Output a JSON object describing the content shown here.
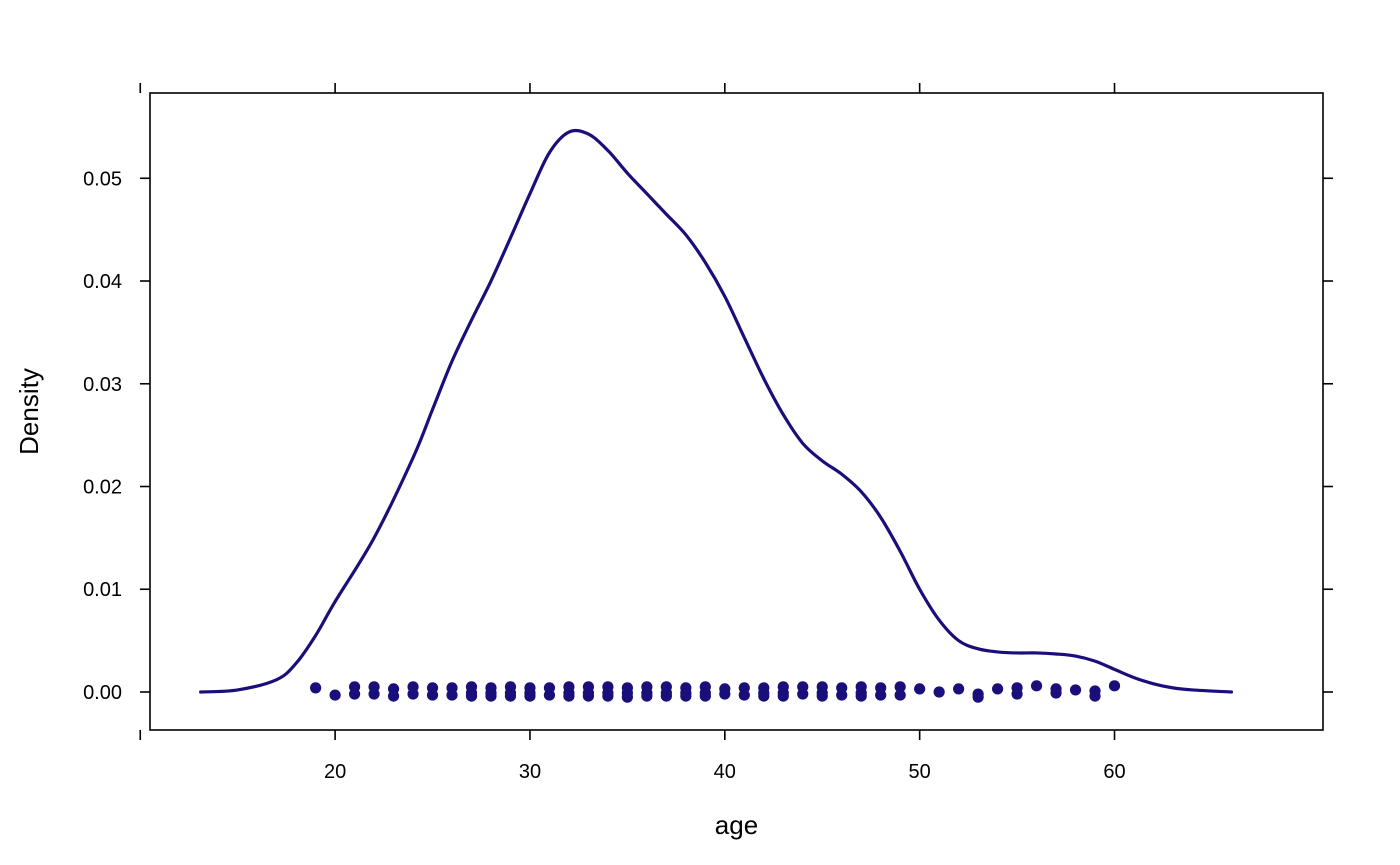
{
  "chart_data": {
    "type": "line",
    "title": "",
    "xlabel": "age",
    "ylabel": "Density",
    "xlim": [
      10.5,
      70.7
    ],
    "ylim": [
      -0.0037,
      0.0583
    ],
    "x_ticks": [
      20,
      30,
      40,
      50,
      60
    ],
    "x_tick_labels": [
      "20",
      "30",
      "40",
      "50",
      "60"
    ],
    "y_ticks": [
      0.0,
      0.01,
      0.02,
      0.03,
      0.04,
      0.05
    ],
    "y_tick_labels": [
      "0.00",
      "0.01",
      "0.02",
      "0.03",
      "0.04",
      "0.05"
    ],
    "grid": false,
    "color": "#1a0f7a",
    "series": [
      {
        "kind": "density",
        "x": [
          13.1,
          15,
          17,
          18,
          19,
          20,
          22,
          24,
          25,
          26,
          27,
          28,
          29,
          30,
          31,
          32,
          33,
          34,
          35,
          36,
          37,
          38,
          39,
          40,
          41,
          42,
          43,
          44,
          45,
          46,
          47,
          48,
          49,
          50,
          51,
          52,
          53,
          54,
          55,
          56,
          57,
          58,
          59,
          60,
          61,
          62,
          63,
          64,
          66
        ],
        "y": [
          0.0,
          0.0002,
          0.0012,
          0.0028,
          0.0055,
          0.0088,
          0.015,
          0.0228,
          0.0275,
          0.0322,
          0.0362,
          0.04,
          0.0442,
          0.0485,
          0.0525,
          0.0545,
          0.0543,
          0.0527,
          0.0505,
          0.0485,
          0.0465,
          0.0445,
          0.0418,
          0.0385,
          0.0345,
          0.0305,
          0.027,
          0.0242,
          0.0225,
          0.0212,
          0.0195,
          0.017,
          0.0137,
          0.01,
          0.007,
          0.005,
          0.0042,
          0.0039,
          0.0038,
          0.0038,
          0.0037,
          0.0035,
          0.003,
          0.0022,
          0.0014,
          0.0008,
          0.0004,
          0.0002,
          0.0
        ]
      },
      {
        "kind": "rug",
        "x": [
          19,
          20,
          21,
          21,
          22,
          22,
          23,
          23,
          24,
          24,
          25,
          25,
          26,
          26,
          27,
          27,
          27,
          28,
          28,
          28,
          29,
          29,
          29,
          30,
          30,
          30,
          31,
          31,
          32,
          32,
          32,
          33,
          33,
          33,
          34,
          34,
          34,
          35,
          35,
          35,
          36,
          36,
          36,
          37,
          37,
          37,
          38,
          38,
          38,
          39,
          39,
          39,
          40,
          40,
          41,
          41,
          42,
          42,
          42,
          43,
          43,
          43,
          44,
          44,
          45,
          45,
          45,
          46,
          46,
          47,
          47,
          47,
          48,
          48,
          49,
          49,
          50,
          51,
          52,
          53,
          53,
          54,
          55,
          55,
          56,
          57,
          57,
          58,
          59,
          59,
          60
        ],
        "y": [
          0.0004,
          -0.0003,
          0.0005,
          -0.0002,
          0.0005,
          -0.0002,
          0.0003,
          -0.0004,
          0.0005,
          -0.0002,
          0.0004,
          -0.0003,
          0.0004,
          -0.0003,
          0.0005,
          -0.0001,
          -0.0004,
          0.0004,
          -0.0001,
          -0.0004,
          0.0005,
          -0.0001,
          -0.0004,
          0.0004,
          -0.0001,
          -0.0004,
          0.0004,
          -0.0003,
          0.0005,
          -0.0001,
          -0.0004,
          0.0005,
          -0.0001,
          -0.0004,
          0.0005,
          -0.0001,
          -0.0004,
          0.0004,
          -0.0001,
          -0.0005,
          0.0005,
          -0.0001,
          -0.0004,
          0.0005,
          -0.0001,
          -0.0004,
          0.0004,
          -0.0001,
          -0.0004,
          0.0005,
          -0.0001,
          -0.0004,
          0.0003,
          -0.0002,
          0.0004,
          -0.0003,
          0.0004,
          -0.0001,
          -0.0004,
          0.0005,
          -0.0001,
          -0.0004,
          0.0005,
          -0.0002,
          0.0005,
          -0.0001,
          -0.0004,
          0.0004,
          -0.0003,
          0.0005,
          -0.0001,
          -0.0004,
          0.0004,
          -0.0003,
          0.0005,
          -0.0003,
          0.0003,
          0.0,
          0.0003,
          -0.0002,
          -0.0005,
          0.0003,
          0.0004,
          -0.0002,
          0.0006,
          0.0003,
          -0.0001,
          0.0002,
          0.0001,
          -0.0004,
          0.0006
        ]
      }
    ]
  }
}
